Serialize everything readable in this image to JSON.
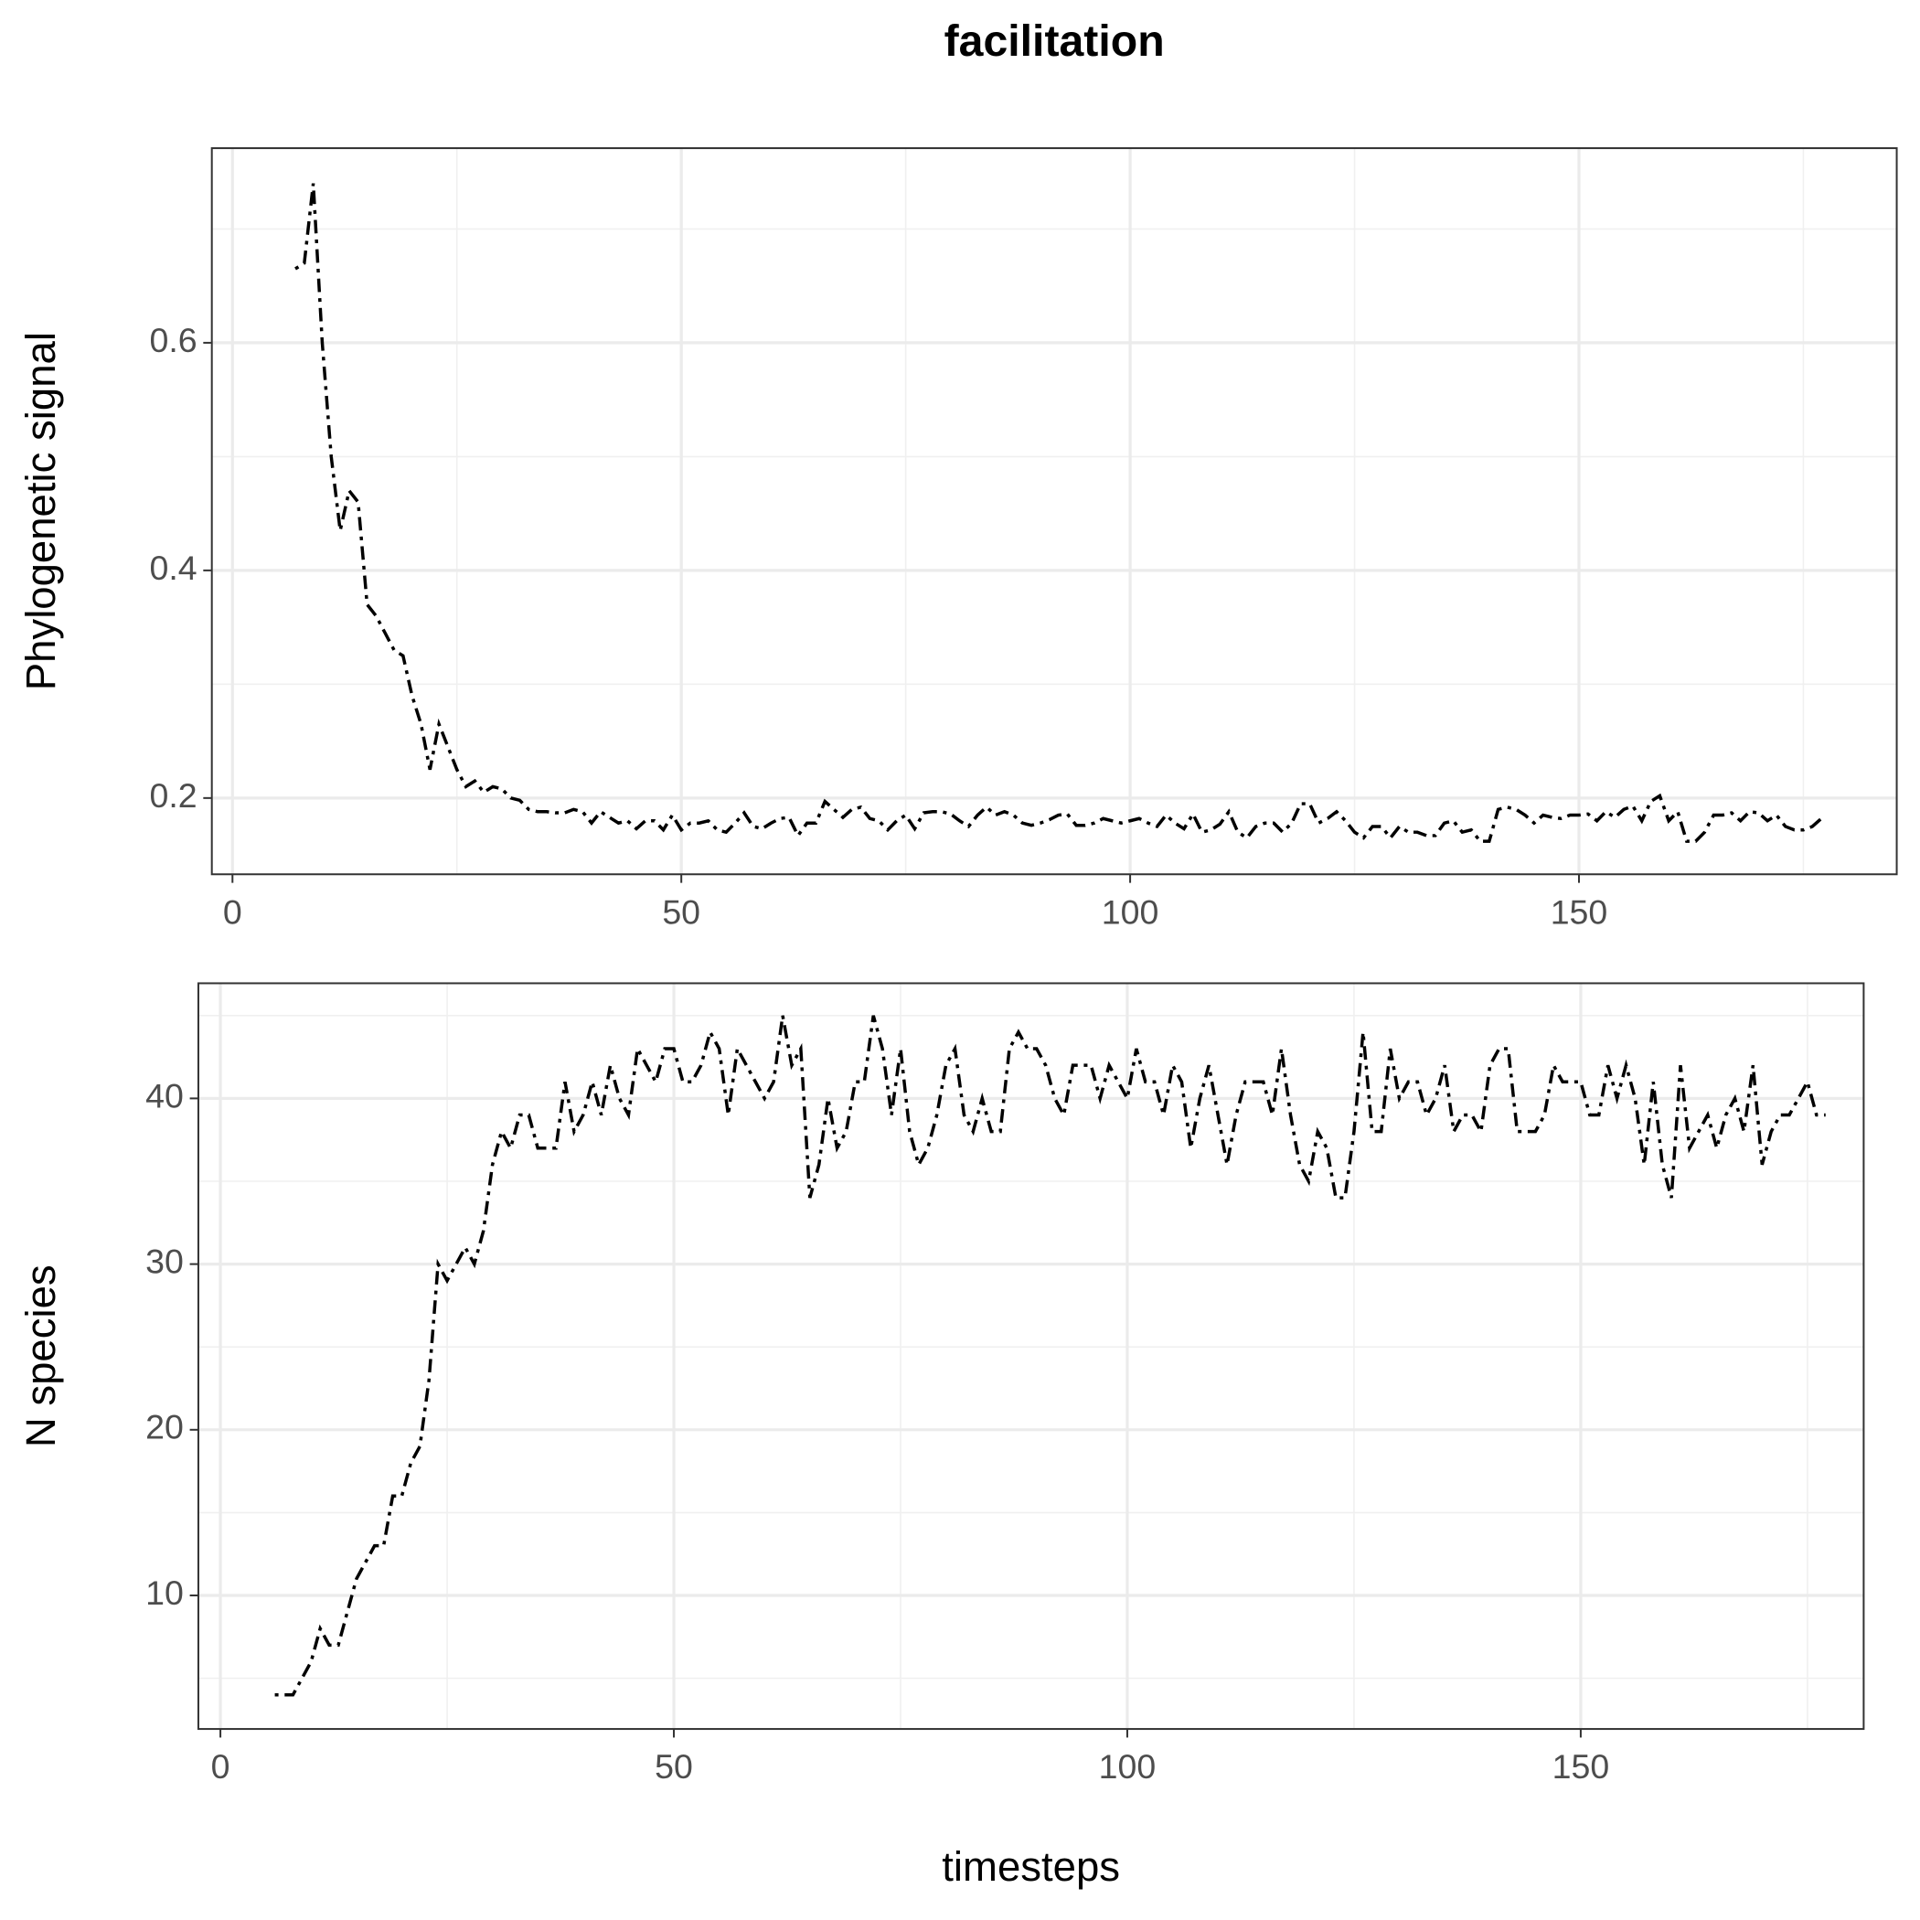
{
  "chart_data": [
    {
      "type": "line",
      "title": "facilitation",
      "ylabel": "Phylogenetic signal",
      "xlim": [
        -2.3,
        185.4
      ],
      "ylim": [
        0.133,
        0.771
      ],
      "xticks": [
        0,
        50,
        100,
        150
      ],
      "yticks": [
        0.2,
        0.4,
        0.6
      ],
      "minor_xticks": [
        25,
        75,
        125,
        175
      ],
      "minor_yticks": [
        0.3,
        0.5,
        0.7
      ],
      "grid": true,
      "x": [
        7,
        8,
        9,
        10,
        11,
        12,
        13,
        14,
        15,
        16,
        17,
        18,
        19,
        20,
        21,
        22,
        23,
        24,
        25,
        26,
        27,
        28,
        29,
        30,
        31,
        32,
        33,
        34,
        35,
        36,
        37,
        38,
        39,
        40,
        41,
        42,
        43,
        44,
        45,
        46,
        47,
        48,
        49,
        50,
        51,
        52,
        53,
        54,
        55,
        56,
        57,
        58,
        59,
        60,
        61,
        62,
        63,
        64,
        65,
        66,
        67,
        68,
        69,
        70,
        71,
        72,
        73,
        74,
        75,
        76,
        77,
        78,
        79,
        80,
        81,
        82,
        83,
        84,
        85,
        86,
        87,
        88,
        89,
        90,
        91,
        92,
        93,
        94,
        95,
        96,
        97,
        98,
        99,
        100,
        101,
        102,
        103,
        104,
        105,
        106,
        107,
        108,
        109,
        110,
        111,
        112,
        113,
        114,
        115,
        116,
        117,
        118,
        119,
        120,
        121,
        122,
        123,
        124,
        125,
        126,
        127,
        128,
        129,
        130,
        131,
        132,
        133,
        134,
        135,
        136,
        137,
        138,
        139,
        140,
        141,
        142,
        143,
        144,
        145,
        146,
        147,
        148,
        149,
        150,
        151,
        152,
        153,
        154,
        155,
        156,
        157,
        158,
        159,
        160,
        161,
        162,
        163,
        164,
        165,
        166,
        167,
        168,
        169,
        170,
        171,
        172,
        173,
        174,
        175,
        176,
        177
      ],
      "series": [
        {
          "color": "#000000",
          "values": [
            0.665,
            0.67,
            0.74,
            0.6,
            0.5,
            0.435,
            0.47,
            0.46,
            0.37,
            0.36,
            0.345,
            0.33,
            0.325,
            0.29,
            0.265,
            0.225,
            0.265,
            0.245,
            0.225,
            0.21,
            0.215,
            0.205,
            0.21,
            0.208,
            0.2,
            0.198,
            0.19,
            0.188,
            0.188,
            0.187,
            0.187,
            0.19,
            0.188,
            0.178,
            0.188,
            0.183,
            0.178,
            0.18,
            0.173,
            0.18,
            0.18,
            0.172,
            0.185,
            0.172,
            0.178,
            0.178,
            0.18,
            0.172,
            0.17,
            0.178,
            0.187,
            0.175,
            0.173,
            0.178,
            0.182,
            0.183,
            0.167,
            0.178,
            0.178,
            0.197,
            0.19,
            0.183,
            0.19,
            0.192,
            0.182,
            0.18,
            0.172,
            0.18,
            0.185,
            0.173,
            0.187,
            0.188,
            0.188,
            0.186,
            0.18,
            0.175,
            0.185,
            0.192,
            0.185,
            0.188,
            0.185,
            0.178,
            0.176,
            0.178,
            0.181,
            0.185,
            0.186,
            0.176,
            0.176,
            0.178,
            0.182,
            0.18,
            0.178,
            0.18,
            0.182,
            0.178,
            0.175,
            0.185,
            0.178,
            0.173,
            0.186,
            0.17,
            0.172,
            0.177,
            0.188,
            0.17,
            0.165,
            0.175,
            0.178,
            0.178,
            0.17,
            0.178,
            0.195,
            0.195,
            0.178,
            0.182,
            0.188,
            0.18,
            0.17,
            0.165,
            0.175,
            0.175,
            0.165,
            0.175,
            0.17,
            0.17,
            0.167,
            0.167,
            0.178,
            0.18,
            0.17,
            0.172,
            0.162,
            0.162,
            0.19,
            0.192,
            0.19,
            0.185,
            0.178,
            0.185,
            0.183,
            0.182,
            0.185,
            0.185,
            0.186,
            0.18,
            0.188,
            0.183,
            0.19,
            0.193,
            0.18,
            0.197,
            0.202,
            0.18,
            0.188,
            0.162,
            0.162,
            0.17,
            0.185,
            0.185,
            0.187,
            0.18,
            0.188,
            0.187,
            0.18,
            0.185,
            0.175,
            0.172,
            0.172,
            0.175,
            0.182
          ]
        }
      ]
    },
    {
      "type": "line",
      "ylabel": "N species",
      "xlabel": "timesteps",
      "xlim": [
        -2.43,
        181.2
      ],
      "ylim": [
        1.94,
        46.95
      ],
      "xticks": [
        0,
        50,
        100,
        150
      ],
      "yticks": [
        10,
        20,
        30,
        40
      ],
      "minor_xticks": [
        25,
        75,
        125,
        175
      ],
      "minor_yticks": [
        5,
        15,
        25,
        35,
        45
      ],
      "grid": true,
      "x": [
        6,
        7,
        8,
        9,
        10,
        11,
        12,
        13,
        14,
        15,
        16,
        17,
        18,
        19,
        20,
        21,
        22,
        23,
        24,
        25,
        26,
        27,
        28,
        29,
        30,
        31,
        32,
        33,
        34,
        35,
        36,
        37,
        38,
        39,
        40,
        41,
        42,
        43,
        44,
        45,
        46,
        47,
        48,
        49,
        50,
        51,
        52,
        53,
        54,
        55,
        56,
        57,
        58,
        59,
        60,
        61,
        62,
        63,
        64,
        65,
        66,
        67,
        68,
        69,
        70,
        71,
        72,
        73,
        74,
        75,
        76,
        77,
        78,
        79,
        80,
        81,
        82,
        83,
        84,
        85,
        86,
        87,
        88,
        89,
        90,
        91,
        92,
        93,
        94,
        95,
        96,
        97,
        98,
        99,
        100,
        101,
        102,
        103,
        104,
        105,
        106,
        107,
        108,
        109,
        110,
        111,
        112,
        113,
        114,
        115,
        116,
        117,
        118,
        119,
        120,
        121,
        122,
        123,
        124,
        125,
        126,
        127,
        128,
        129,
        130,
        131,
        132,
        133,
        134,
        135,
        136,
        137,
        138,
        139,
        140,
        141,
        142,
        143,
        144,
        145,
        146,
        147,
        148,
        149,
        150,
        151,
        152,
        153,
        154,
        155,
        156,
        157,
        158,
        159,
        160,
        161,
        162,
        163,
        164,
        165,
        166,
        167,
        168,
        169,
        170,
        171,
        172,
        173,
        174,
        175,
        176,
        177
      ],
      "series": [
        {
          "color": "#000000",
          "values": [
            4,
            4,
            4,
            5,
            6,
            8,
            7,
            7,
            9,
            11,
            12,
            13,
            13,
            16,
            16,
            18,
            19,
            23,
            30,
            29,
            30,
            31,
            30,
            32,
            36,
            38,
            37,
            39,
            39,
            37,
            37,
            37,
            41,
            38,
            39,
            41,
            39,
            42,
            40,
            39,
            43,
            42,
            41,
            43,
            43,
            41,
            41,
            42,
            44,
            43,
            39,
            43,
            42,
            41,
            40,
            41,
            45,
            42,
            43,
            34,
            36,
            40,
            37,
            38,
            41,
            41,
            45,
            43,
            39,
            43,
            38,
            36,
            37,
            39,
            42,
            43,
            39,
            38,
            40,
            38,
            38,
            43,
            44,
            43,
            43,
            42,
            40,
            39,
            42,
            42,
            42,
            40,
            42,
            41,
            40,
            43,
            41,
            41,
            39,
            42,
            41,
            37,
            40,
            42,
            39,
            36,
            39,
            41,
            41,
            41,
            39,
            43,
            39,
            36,
            35,
            38,
            37,
            34,
            34,
            38,
            44,
            38,
            38,
            43,
            40,
            41,
            41,
            39,
            40,
            42,
            38,
            39,
            39,
            38,
            42,
            43,
            43,
            38,
            38,
            38,
            39,
            42,
            41,
            41,
            41,
            39,
            39,
            42,
            40,
            42,
            40,
            36,
            41,
            36,
            34,
            42,
            37,
            38,
            39,
            37,
            39,
            40,
            38,
            42,
            36,
            38,
            39,
            39,
            40,
            41,
            39,
            39
          ]
        }
      ]
    }
  ]
}
